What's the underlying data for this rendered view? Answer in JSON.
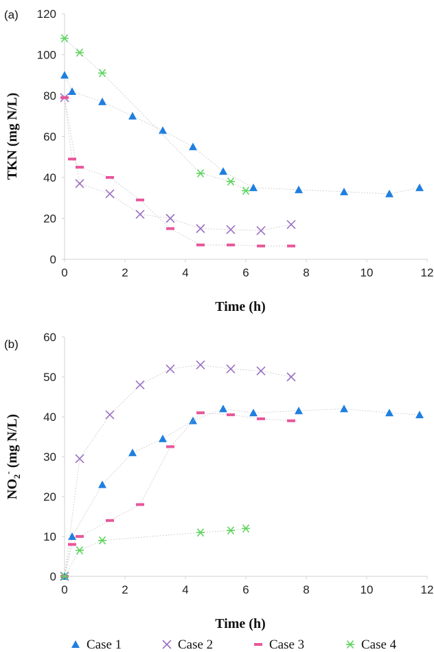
{
  "chart_data": [
    {
      "type": "scatter",
      "panel_label": "(a)",
      "xlabel": "Time (h)",
      "ylabel": "TKN (mg N/L)",
      "xlim": [
        0,
        12
      ],
      "ylim": [
        0,
        120
      ],
      "xticks": [
        0,
        2,
        4,
        6,
        8,
        10,
        12
      ],
      "yticks": [
        0,
        20,
        40,
        60,
        80,
        100,
        120
      ],
      "grid": false,
      "series": [
        {
          "name": "Case 1",
          "marker": "triangle",
          "color": "#1f7fe0",
          "x": [
            0,
            0.25,
            1.25,
            2.25,
            3.25,
            4.25,
            5.25,
            6.25,
            7.75,
            9.25,
            10.75,
            11.75
          ],
          "y": [
            90,
            82,
            77,
            70,
            63,
            55,
            43,
            35,
            34,
            33,
            32,
            35
          ]
        },
        {
          "name": "Case 2",
          "marker": "x",
          "color": "#9b6fc2",
          "x": [
            0,
            0.5,
            1.5,
            2.5,
            3.5,
            4.5,
            5.5,
            6.5,
            7.5
          ],
          "y": [
            79,
            37,
            32,
            22,
            20,
            15,
            14.5,
            14,
            17
          ]
        },
        {
          "name": "Case 3",
          "marker": "dash",
          "color": "#e8569a",
          "x": [
            0,
            0.25,
            0.5,
            1.5,
            2.5,
            3.5,
            4.5,
            5.5,
            6.5,
            7.5
          ],
          "y": [
            79,
            49,
            45,
            40,
            29,
            15,
            7,
            7,
            6.5,
            6.5
          ]
        },
        {
          "name": "Case 4",
          "marker": "asterisk",
          "color": "#5fd45f",
          "x": [
            0,
            0.5,
            1.25,
            4.5,
            5.5,
            6
          ],
          "y": [
            108,
            101,
            91,
            42,
            38,
            33.5
          ]
        }
      ]
    },
    {
      "type": "scatter",
      "panel_label": "(b)",
      "xlabel": "Time (h)",
      "ylabel_main": "NO",
      "ylabel_sub": "2",
      "ylabel_sup": "-",
      "ylabel_rest": " (mg N/L)",
      "xlim": [
        0,
        12
      ],
      "ylim": [
        0,
        60
      ],
      "xticks": [
        0,
        2,
        4,
        6,
        8,
        10,
        12
      ],
      "yticks": [
        0,
        10,
        20,
        30,
        40,
        50,
        60
      ],
      "grid": false,
      "series": [
        {
          "name": "Case 1",
          "marker": "triangle",
          "color": "#1f7fe0",
          "x": [
            0,
            0.25,
            1.25,
            2.25,
            3.25,
            4.25,
            5.25,
            6.25,
            7.75,
            9.25,
            10.75,
            11.75
          ],
          "y": [
            0,
            10,
            23,
            31,
            34.5,
            39,
            42,
            41,
            41.5,
            42,
            41,
            40.5
          ]
        },
        {
          "name": "Case 2",
          "marker": "x",
          "color": "#9b6fc2",
          "x": [
            0,
            0.5,
            1.5,
            2.5,
            3.5,
            4.5,
            5.5,
            6.5,
            7.5
          ],
          "y": [
            0,
            29.5,
            40.5,
            48,
            52,
            53,
            52,
            51.5,
            50
          ]
        },
        {
          "name": "Case 3",
          "marker": "dash",
          "color": "#e8569a",
          "x": [
            0,
            0.25,
            0.5,
            1.5,
            2.5,
            3.5,
            4.5,
            5.5,
            6.5,
            7.5
          ],
          "y": [
            0,
            8,
            10,
            14,
            18,
            32.5,
            41,
            40.5,
            39.5,
            39
          ]
        },
        {
          "name": "Case 4",
          "marker": "asterisk",
          "color": "#5fd45f",
          "x": [
            0,
            0.5,
            1.25,
            4.5,
            5.5,
            6
          ],
          "y": [
            0,
            6.5,
            9,
            11,
            11.5,
            12
          ]
        }
      ]
    }
  ],
  "legend": {
    "placement": "bottom",
    "items": [
      {
        "label": "Case 1",
        "marker": "triangle",
        "color": "#1f7fe0"
      },
      {
        "label": "Case 2",
        "marker": "x",
        "color": "#9b6fc2"
      },
      {
        "label": "Case 3",
        "marker": "dash",
        "color": "#e8569a"
      },
      {
        "label": "Case 4",
        "marker": "asterisk",
        "color": "#5fd45f"
      }
    ]
  }
}
